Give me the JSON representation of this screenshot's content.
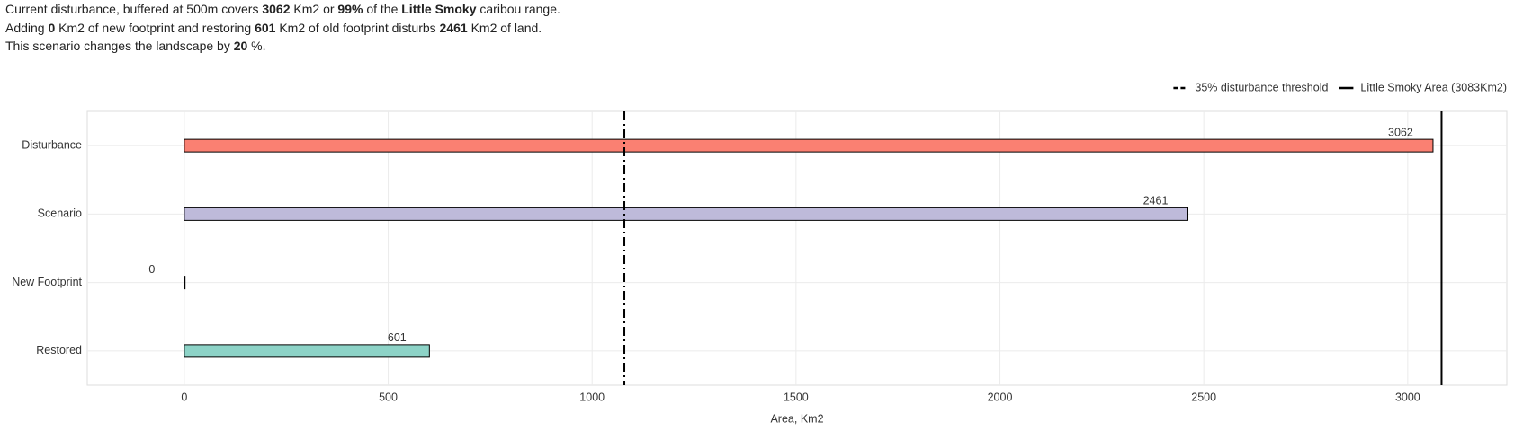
{
  "summary": [
    [
      {
        "text": "Current disturbance, buffered at 500m covers "
      },
      {
        "text": "3062",
        "bold": true
      },
      {
        "text": " Km2 or "
      },
      {
        "text": "99%",
        "bold": true
      },
      {
        "text": " of the "
      },
      {
        "text": "Little Smoky",
        "bold": true
      },
      {
        "text": " caribou range."
      }
    ],
    [
      {
        "text": "Adding "
      },
      {
        "text": "0",
        "bold": true
      },
      {
        "text": " Km2 of new footprint and restoring "
      },
      {
        "text": "601",
        "bold": true
      },
      {
        "text": " Km2 of old footprint disturbs "
      },
      {
        "text": "2461",
        "bold": true
      },
      {
        "text": " Km2 of land."
      }
    ],
    [
      {
        "text": "This scenario changes the landscape by "
      },
      {
        "text": "20",
        "bold": true
      },
      {
        "text": " %."
      }
    ]
  ],
  "chart_data": {
    "type": "bar",
    "orientation": "horizontal",
    "categories": [
      "Disturbance",
      "Scenario",
      "New Footprint",
      "Restored"
    ],
    "values": [
      3062,
      2461,
      0,
      601
    ],
    "colors": [
      "#fa8072",
      "#bebada",
      "#8dd3c7",
      "#8dd3c7"
    ],
    "xlabel": "Area, Km2",
    "xlim": [
      -238,
      3243
    ],
    "xticks": [
      0,
      500,
      1000,
      1500,
      2000,
      2500,
      3000
    ],
    "grid": true,
    "reference_lines": [
      {
        "name": "35% disturbance threshold",
        "value": 1079,
        "style": "dashdot"
      },
      {
        "name": "Little Smoky Area (3083Km2)",
        "value": 3083,
        "style": "solid"
      }
    ],
    "legend_position": "top-right"
  }
}
